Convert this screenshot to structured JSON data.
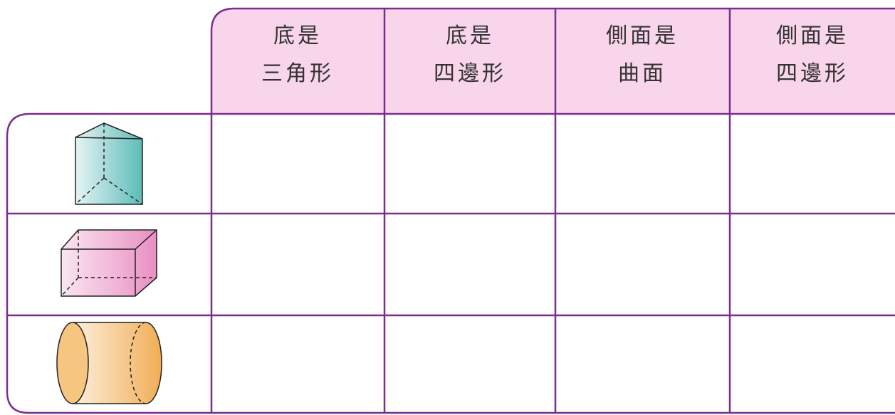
{
  "table": {
    "headers": [
      [
        "底是",
        "三角形"
      ],
      [
        "底是",
        "四邊形"
      ],
      [
        "側面是",
        "曲面"
      ],
      [
        "側面是",
        "四邊形"
      ]
    ]
  }
}
